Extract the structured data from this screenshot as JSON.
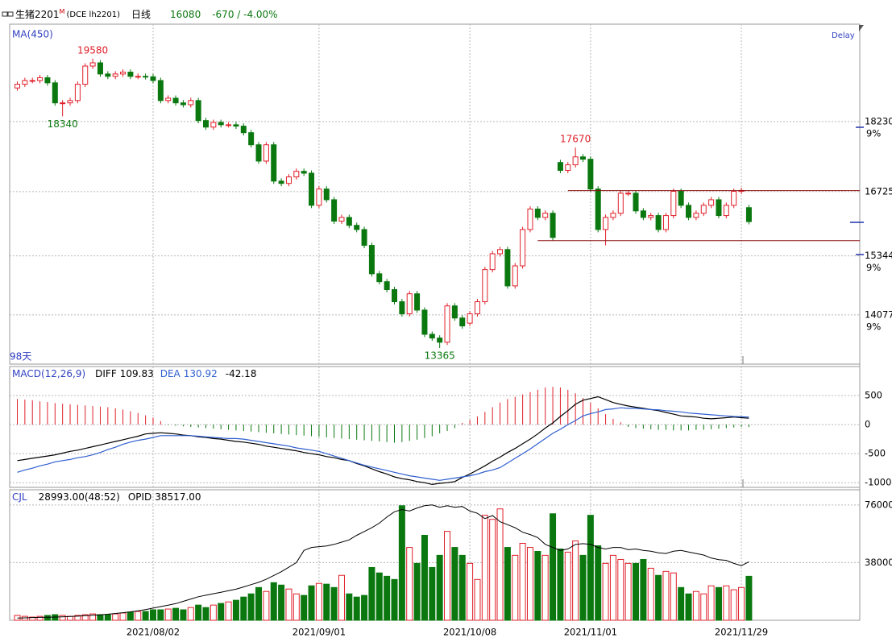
{
  "header": {
    "symbol": "生猪2201",
    "flag": "M",
    "code": "(DCE lh2201)",
    "period": "日线",
    "change": "-670 / -4.00%"
  },
  "chart_data": [
    {
      "type": "candlestick",
      "title": "MA(450)",
      "status": "Delay",
      "span_label": "98天",
      "up_color": "#e0202a",
      "down_color": "#0a780f",
      "ylim": [
        13020,
        20320
      ],
      "yticks": [
        18230,
        16725,
        15344,
        14077
      ],
      "ytick_notes": [
        "9%",
        null,
        "9%",
        "9%"
      ],
      "grid": true,
      "levels": [
        16745,
        15670
      ],
      "level_color": "#8b1010",
      "open": [
        18950,
        19030,
        19110,
        19110,
        19170,
        19060,
        18630,
        18630,
        18680,
        19030,
        19420,
        19490,
        19250,
        19200,
        19250,
        19290,
        19200,
        19200,
        19190,
        19110,
        18680,
        18730,
        18630,
        18590,
        18680,
        18250,
        18110,
        18210,
        18160,
        18160,
        18130,
        17990,
        17730,
        17380,
        17730,
        16950,
        16900,
        17040,
        17160,
        17120,
        16430,
        16780,
        16550,
        16090,
        16170,
        16000,
        15910,
        15570,
        14960,
        14790,
        14620,
        14360,
        14100,
        14530,
        14180,
        13660,
        13580,
        13490,
        14270,
        14010,
        13900,
        14100,
        14360,
        15050,
        15390,
        15480,
        14700,
        15130,
        15910,
        16350,
        16170,
        16260,
        17350,
        17180,
        17300,
        17470,
        17420,
        16780,
        15910,
        16170,
        16260,
        16690,
        16690,
        16310,
        16170,
        16210,
        15910,
        16210,
        16730,
        16430,
        16170,
        16260,
        16430,
        16550,
        16210,
        16430,
        16730,
        16380
      ],
      "high": [
        19090,
        19170,
        19170,
        19230,
        19230,
        19120,
        18690,
        18740,
        19090,
        19480,
        19580,
        19550,
        19310,
        19310,
        19350,
        19350,
        19260,
        19260,
        19250,
        19170,
        18790,
        18790,
        18690,
        18740,
        18740,
        18310,
        18270,
        18270,
        18220,
        18220,
        18190,
        18050,
        17790,
        17790,
        17790,
        17010,
        17100,
        17220,
        17220,
        17180,
        16840,
        16840,
        16610,
        16230,
        16230,
        16060,
        15970,
        15630,
        15020,
        14850,
        14680,
        14420,
        14590,
        14590,
        14240,
        13720,
        13640,
        14330,
        14330,
        14070,
        14160,
        14420,
        15110,
        15450,
        15540,
        15540,
        15190,
        15970,
        16410,
        16410,
        16320,
        16320,
        17410,
        17360,
        17670,
        17530,
        17480,
        16840,
        16230,
        16320,
        16750,
        16750,
        16750,
        16370,
        16270,
        16270,
        16270,
        16790,
        16790,
        16490,
        16320,
        16490,
        16610,
        16610,
        16490,
        16790,
        16810,
        16440
      ],
      "low": [
        18890,
        18970,
        19050,
        19050,
        19000,
        18570,
        18340,
        18570,
        18620,
        18970,
        19360,
        19190,
        19140,
        19140,
        19190,
        19140,
        19140,
        19130,
        19050,
        18620,
        18620,
        18570,
        18530,
        18530,
        18190,
        18050,
        18050,
        18100,
        18100,
        18070,
        17930,
        17670,
        17320,
        17320,
        16890,
        16840,
        16840,
        16980,
        17060,
        16370,
        16370,
        16490,
        16030,
        16030,
        15940,
        15850,
        15510,
        14900,
        14730,
        14560,
        14300,
        14040,
        14040,
        14120,
        13600,
        13520,
        13365,
        13430,
        13950,
        13780,
        13840,
        14040,
        14300,
        14990,
        15330,
        14640,
        14640,
        15070,
        15850,
        16110,
        16110,
        15680,
        17120,
        17120,
        17240,
        17360,
        16720,
        15850,
        15570,
        16110,
        16200,
        16630,
        16250,
        16110,
        16110,
        15850,
        15850,
        16150,
        16370,
        16110,
        16110,
        16200,
        16370,
        16150,
        16150,
        16370,
        16670,
        16020
      ],
      "close": [
        19030,
        19110,
        19110,
        19170,
        19060,
        18630,
        18630,
        18680,
        19030,
        19420,
        19490,
        19250,
        19200,
        19250,
        19290,
        19200,
        19200,
        19190,
        19110,
        18680,
        18730,
        18630,
        18590,
        18680,
        18250,
        18110,
        18210,
        18160,
        18160,
        18130,
        17990,
        17730,
        17380,
        17730,
        16950,
        16900,
        17040,
        17160,
        17120,
        16430,
        16780,
        16550,
        16090,
        16170,
        16000,
        15910,
        15570,
        14960,
        14790,
        14620,
        14360,
        14100,
        14530,
        14180,
        13660,
        13580,
        13490,
        14270,
        14010,
        13840,
        14100,
        14360,
        15050,
        15390,
        15480,
        14700,
        15130,
        15910,
        16350,
        16170,
        16260,
        15740,
        17180,
        17300,
        17470,
        17420,
        16780,
        15910,
        16170,
        16260,
        16690,
        16690,
        16310,
        16170,
        16210,
        15910,
        16210,
        16730,
        16430,
        16170,
        16260,
        16430,
        16550,
        16210,
        16430,
        16730,
        16750,
        16080
      ]
    },
    {
      "type": "macd",
      "title": "MACD(12,26,9)",
      "ylim": [
        -1080,
        1000
      ],
      "yticks": [
        500,
        0,
        -500,
        -1000
      ],
      "up_color": "#e0202a",
      "down_color": "#0a780f",
      "series": [
        {
          "name": "DIFF",
          "color": "#000000",
          "values": [
            -620,
            -600,
            -580,
            -560,
            -540,
            -520,
            -490,
            -460,
            -440,
            -410,
            -380,
            -350,
            -320,
            -290,
            -260,
            -230,
            -200,
            -160,
            -150,
            -140,
            -150,
            -160,
            -180,
            -190,
            -210,
            -220,
            -240,
            -250,
            -270,
            -290,
            -300,
            -320,
            -340,
            -370,
            -390,
            -410,
            -430,
            -450,
            -480,
            -500,
            -520,
            -550,
            -570,
            -600,
            -620,
            -670,
            -710,
            -760,
            -810,
            -850,
            -900,
            -930,
            -950,
            -980,
            -1000,
            -1030,
            -1010,
            -1000,
            -980,
            -910,
            -850,
            -780,
            -710,
            -630,
            -560,
            -480,
            -410,
            -330,
            -250,
            -160,
            -60,
            30,
            140,
            240,
            350,
            420,
            450,
            480,
            430,
            380,
            350,
            320,
            300,
            280,
            260,
            240,
            210,
            180,
            150,
            140,
            130,
            110,
            100,
            110,
            120,
            130,
            120,
            109.83
          ]
        },
        {
          "name": "DEA",
          "color": "#2f5fd0",
          "values": [
            -820,
            -780,
            -750,
            -710,
            -680,
            -640,
            -620,
            -600,
            -570,
            -550,
            -520,
            -480,
            -430,
            -390,
            -340,
            -300,
            -270,
            -250,
            -220,
            -190,
            -190,
            -190,
            -190,
            -190,
            -200,
            -210,
            -220,
            -230,
            -240,
            -240,
            -250,
            -270,
            -290,
            -310,
            -330,
            -350,
            -370,
            -400,
            -420,
            -440,
            -460,
            -500,
            -540,
            -580,
            -620,
            -660,
            -700,
            -730,
            -760,
            -790,
            -820,
            -850,
            -880,
            -900,
            -920,
            -940,
            -960,
            -940,
            -920,
            -900,
            -880,
            -850,
            -810,
            -780,
            -740,
            -660,
            -580,
            -500,
            -420,
            -330,
            -240,
            -150,
            -80,
            0,
            70,
            150,
            190,
            220,
            260,
            270,
            290,
            280,
            280,
            270,
            260,
            255,
            240,
            230,
            220,
            200,
            190,
            180,
            170,
            160,
            150,
            140,
            135,
            130.92
          ]
        },
        {
          "color": "#000000",
          "values": [
            440,
            430,
            420,
            400,
            390,
            370,
            360,
            350,
            340,
            330,
            320,
            310,
            300,
            280,
            260,
            230,
            200,
            160,
            120,
            60,
            -10,
            -20,
            -30,
            -40,
            -50,
            -60,
            -70,
            -80,
            -90,
            -100,
            -110,
            -120,
            -130,
            -140,
            -150,
            -160,
            -170,
            -180,
            -190,
            -200,
            -210,
            -220,
            -230,
            -240,
            -250,
            -260,
            -270,
            -280,
            -290,
            -300,
            -310,
            -300,
            -280,
            -260,
            -230,
            -200,
            -150,
            -110,
            -60,
            30,
            80,
            140,
            220,
            300,
            380,
            440,
            480,
            520,
            560,
            600,
            640,
            650,
            640,
            600,
            540,
            460,
            380,
            280,
            180,
            100,
            40,
            -40,
            -60,
            -70,
            -80,
            -90,
            -90,
            -100,
            -100,
            -100,
            -90,
            -90,
            -80,
            -70,
            -60,
            -50,
            -40,
            -42.18
          ]
        }
      ]
    },
    {
      "type": "volume",
      "title": "CJL",
      "ylim": [
        0,
        86000
      ],
      "yticks": [
        76000,
        38000
      ],
      "categories": [
        null,
        null,
        null,
        null,
        null,
        null,
        null,
        null,
        null,
        null,
        null,
        null,
        null,
        null,
        null,
        null,
        null,
        null,
        "2021/08/02",
        null,
        null,
        null,
        null,
        null,
        null,
        null,
        null,
        null,
        null,
        null,
        null,
        null,
        null,
        null,
        null,
        null,
        null,
        null,
        null,
        null,
        "2021/09/01",
        null,
        null,
        null,
        null,
        null,
        null,
        null,
        null,
        null,
        null,
        null,
        null,
        null,
        null,
        null,
        null,
        null,
        null,
        null,
        "2021/10/08",
        null,
        null,
        null,
        null,
        null,
        null,
        null,
        null,
        null,
        null,
        null,
        null,
        null,
        null,
        null,
        "2021/11/01",
        null,
        null,
        null,
        null,
        null,
        null,
        null,
        null,
        null,
        null,
        null,
        null,
        null,
        null,
        null,
        null,
        null,
        null,
        null,
        "2021/11/29",
        null
      ],
      "series": [
        {
          "last_label": "28993.00(48:52)",
          "values": [
            3200,
            2600,
            2100,
            2600,
            3200,
            3700,
            3200,
            2600,
            3200,
            3700,
            4200,
            3700,
            3700,
            4200,
            4800,
            5300,
            5800,
            5800,
            6900,
            6900,
            7400,
            7900,
            6900,
            8400,
            10000,
            8400,
            10000,
            11100,
            12100,
            13200,
            15300,
            17400,
            21600,
            19000,
            24800,
            23200,
            20600,
            17400,
            16400,
            22700,
            24300,
            23800,
            21600,
            29600,
            17400,
            15300,
            16400,
            34800,
            31200,
            29000,
            26900,
            75500,
            48000,
            37500,
            56000,
            34800,
            42800,
            58600,
            48000,
            42800,
            37500,
            26900,
            69200,
            66500,
            73400,
            48000,
            42800,
            50700,
            48000,
            45400,
            42800,
            70200,
            47000,
            44900,
            52300,
            42800,
            69200,
            49100,
            37500,
            42800,
            40100,
            37500,
            37500,
            40100,
            34300,
            29600,
            32200,
            31200,
            21600,
            17400,
            19000,
            17400,
            22700,
            21600,
            22700,
            20100,
            21600,
            28993
          ]
        },
        {
          "name": "OPID",
          "last_label": "38517.00",
          "color": "#000000",
          "values": [
            1500,
            1600,
            1800,
            1900,
            2000,
            2100,
            2300,
            2500,
            2700,
            3000,
            3300,
            3600,
            4000,
            4500,
            5000,
            5600,
            6200,
            7000,
            8000,
            9000,
            10000,
            11000,
            12500,
            14000,
            15500,
            16500,
            17500,
            18500,
            19500,
            20500,
            22000,
            23500,
            25000,
            27000,
            29500,
            32000,
            35000,
            38000,
            46000,
            48000,
            48500,
            49000,
            50000,
            51500,
            53000,
            56000,
            58500,
            61000,
            64000,
            68000,
            71500,
            73000,
            72000,
            74000,
            75500,
            76000,
            74500,
            75500,
            74500,
            75000,
            72000,
            70500,
            67000,
            69000,
            65000,
            63000,
            61000,
            58000,
            56500,
            54500,
            50000,
            48000,
            46000,
            47000,
            50000,
            50500,
            50000,
            48000,
            47000,
            48000,
            48000,
            46500,
            47000,
            46000,
            45500,
            44500,
            44000,
            45500,
            46000,
            45000,
            44000,
            43000,
            41000,
            40000,
            39500,
            37500,
            36000,
            38517
          ]
        }
      ]
    }
  ]
}
